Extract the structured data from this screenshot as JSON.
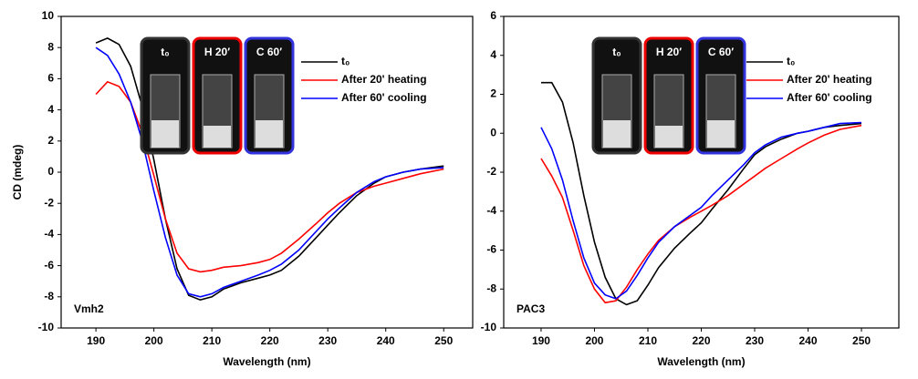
{
  "chart_data": [
    {
      "type": "line",
      "panel_label": "Vmh2",
      "ylabel": "CD (mdeg)",
      "xlabel": "Wavelength (nm)",
      "xlim": [
        184,
        255
      ],
      "ylim": [
        -10,
        10
      ],
      "xticks": [
        190,
        200,
        210,
        220,
        230,
        240,
        250
      ],
      "yticks": [
        -10,
        -8,
        -6,
        -4,
        -2,
        0,
        2,
        4,
        6,
        8,
        10
      ],
      "inset_labels": [
        "t₀",
        "H 20′",
        "C 60′"
      ],
      "x": [
        190,
        192,
        194,
        196,
        198,
        200,
        202,
        204,
        206,
        208,
        210,
        212,
        215,
        218,
        220,
        222,
        225,
        228,
        230,
        232,
        235,
        238,
        240,
        243,
        246,
        250
      ],
      "series": [
        {
          "name": "t₀",
          "color": "#000000",
          "values": [
            8.3,
            8.6,
            8.2,
            6.8,
            4.2,
            0.8,
            -3,
            -6.2,
            -7.9,
            -8.2,
            -8.0,
            -7.5,
            -7.1,
            -6.8,
            -6.6,
            -6.3,
            -5.4,
            -4.2,
            -3.4,
            -2.6,
            -1.5,
            -0.7,
            -0.3,
            0,
            0.2,
            0.4
          ]
        },
        {
          "name": "After 20' heating",
          "color": "#ff0000",
          "values": [
            5.0,
            5.8,
            5.5,
            4.5,
            2.5,
            -0.2,
            -3,
            -5.2,
            -6.2,
            -6.4,
            -6.3,
            -6.1,
            -6.0,
            -5.8,
            -5.6,
            -5.2,
            -4.3,
            -3.3,
            -2.6,
            -2.0,
            -1.3,
            -0.9,
            -0.7,
            -0.4,
            -0.1,
            0.2
          ]
        },
        {
          "name": "After 60' cooling",
          "color": "#0000ff",
          "values": [
            8.0,
            7.5,
            6.3,
            4.5,
            2.0,
            -1.2,
            -4.2,
            -6.6,
            -7.8,
            -8.0,
            -7.8,
            -7.4,
            -7.0,
            -6.6,
            -6.3,
            -5.9,
            -5.0,
            -3.8,
            -3.0,
            -2.3,
            -1.3,
            -0.6,
            -0.3,
            0,
            0.2,
            0.3
          ]
        }
      ]
    },
    {
      "type": "line",
      "panel_label": "PAC3",
      "xlabel": "Wavelength (nm)",
      "xlim": [
        183,
        257
      ],
      "ylim": [
        -10,
        6
      ],
      "xticks": [
        190,
        200,
        210,
        220,
        230,
        240,
        250
      ],
      "yticks": [
        -10,
        -8,
        -6,
        -4,
        -2,
        0,
        2,
        4,
        6
      ],
      "inset_labels": [
        "t₀",
        "H 20′",
        "C 60′"
      ],
      "x": [
        190,
        192,
        194,
        196,
        198,
        200,
        202,
        204,
        206,
        208,
        210,
        212,
        215,
        218,
        220,
        222,
        225,
        228,
        230,
        232,
        235,
        238,
        240,
        243,
        246,
        250
      ],
      "series": [
        {
          "name": "t₀",
          "color": "#000000",
          "values": [
            2.6,
            2.6,
            1.6,
            -0.5,
            -3.2,
            -5.6,
            -7.4,
            -8.5,
            -8.8,
            -8.6,
            -7.8,
            -6.9,
            -5.9,
            -5.1,
            -4.6,
            -3.9,
            -2.9,
            -1.8,
            -1.1,
            -0.7,
            -0.3,
            0,
            0.1,
            0.3,
            0.4,
            0.5
          ]
        },
        {
          "name": "After 20' heating",
          "color": "#ff0000",
          "values": [
            -1.3,
            -2.2,
            -3.3,
            -5.0,
            -6.8,
            -8.0,
            -8.7,
            -8.6,
            -7.9,
            -7.0,
            -6.2,
            -5.5,
            -4.8,
            -4.3,
            -4.0,
            -3.7,
            -3.2,
            -2.6,
            -2.2,
            -1.8,
            -1.3,
            -0.8,
            -0.5,
            -0.1,
            0.2,
            0.4
          ]
        },
        {
          "name": "After 60' cooling",
          "color": "#0000ff",
          "values": [
            0.3,
            -0.8,
            -2.4,
            -4.5,
            -6.4,
            -7.7,
            -8.3,
            -8.5,
            -8.1,
            -7.3,
            -6.4,
            -5.6,
            -4.8,
            -4.2,
            -3.8,
            -3.2,
            -2.4,
            -1.6,
            -1.0,
            -0.6,
            -0.2,
            0,
            0.1,
            0.3,
            0.5,
            0.55
          ]
        }
      ]
    }
  ]
}
